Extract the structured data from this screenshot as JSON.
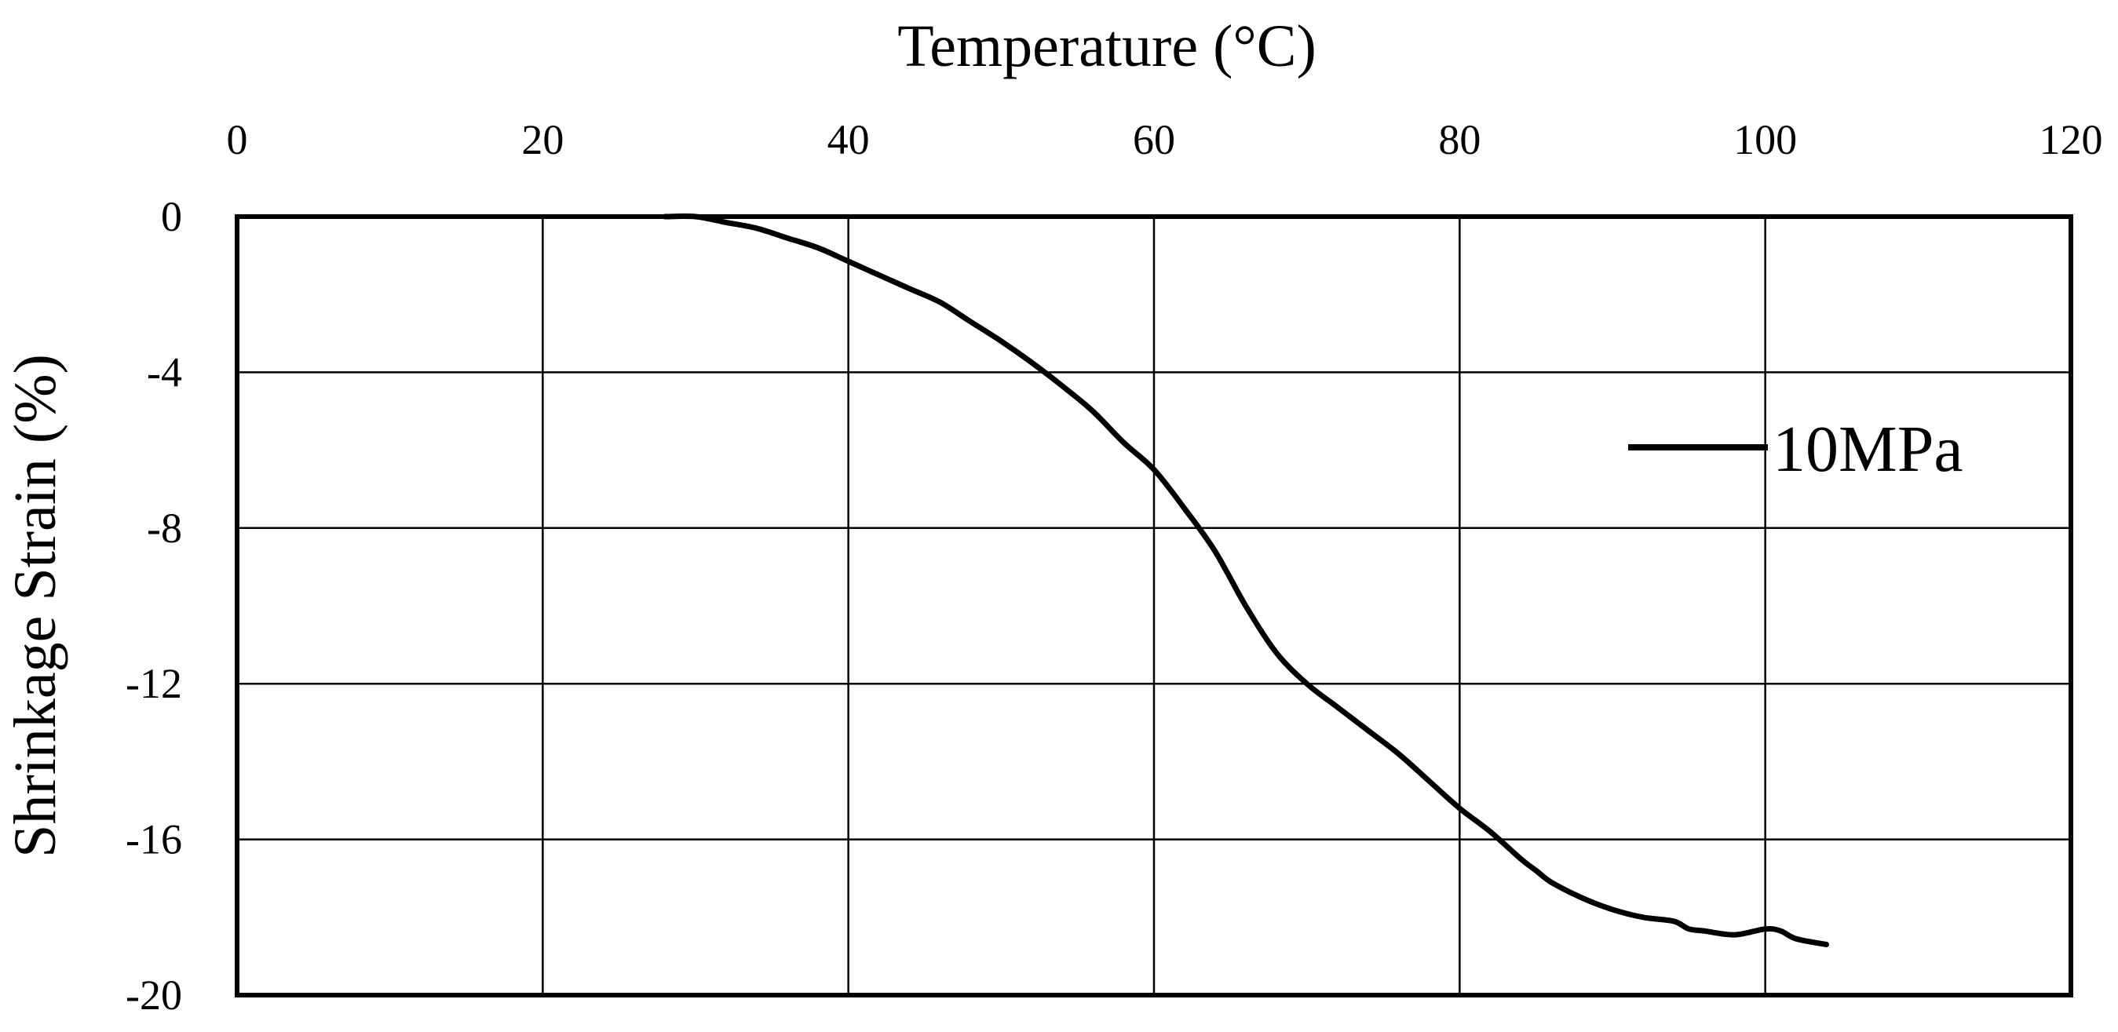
{
  "chart_data": {
    "type": "line",
    "title": "",
    "xlabel": "Temperature (°C)",
    "ylabel": "Shrinkage Strain (%)",
    "xlim": [
      0,
      120
    ],
    "ylim": [
      -20,
      0
    ],
    "x_ticks": [
      0,
      20,
      40,
      60,
      80,
      100,
      120
    ],
    "x_tick_labels": [
      "0",
      "20",
      "40",
      "60",
      "80",
      "100",
      "120"
    ],
    "y_ticks": [
      0,
      -4,
      -8,
      -12,
      -16,
      -20
    ],
    "y_tick_labels": [
      "0",
      "-4",
      "-8",
      "-12",
      "-16",
      "-20"
    ],
    "x_axis_position": "top",
    "grid": true,
    "legend_position": "right",
    "series": [
      {
        "name": "10MPa",
        "color": "#000000",
        "x": [
          28,
          30,
          32,
          34,
          36,
          38,
          40,
          42,
          44,
          46,
          48,
          50,
          52,
          54,
          56,
          58,
          60,
          62,
          64,
          66,
          68,
          70,
          72,
          74,
          76,
          78,
          80,
          82,
          84,
          85,
          86,
          88,
          90,
          92,
          94,
          95,
          96,
          98,
          100,
          101,
          102,
          104
        ],
        "y": [
          0,
          0,
          -0.15,
          -0.3,
          -0.55,
          -0.8,
          -1.15,
          -1.5,
          -1.85,
          -2.2,
          -2.7,
          -3.2,
          -3.75,
          -4.35,
          -5.0,
          -5.8,
          -6.5,
          -7.5,
          -8.6,
          -10.0,
          -11.2,
          -12.0,
          -12.6,
          -13.2,
          -13.8,
          -14.5,
          -15.2,
          -15.8,
          -16.5,
          -16.8,
          -17.1,
          -17.5,
          -17.8,
          -18.0,
          -18.1,
          -18.3,
          -18.35,
          -18.45,
          -18.3,
          -18.35,
          -18.55,
          -18.7
        ]
      }
    ]
  }
}
